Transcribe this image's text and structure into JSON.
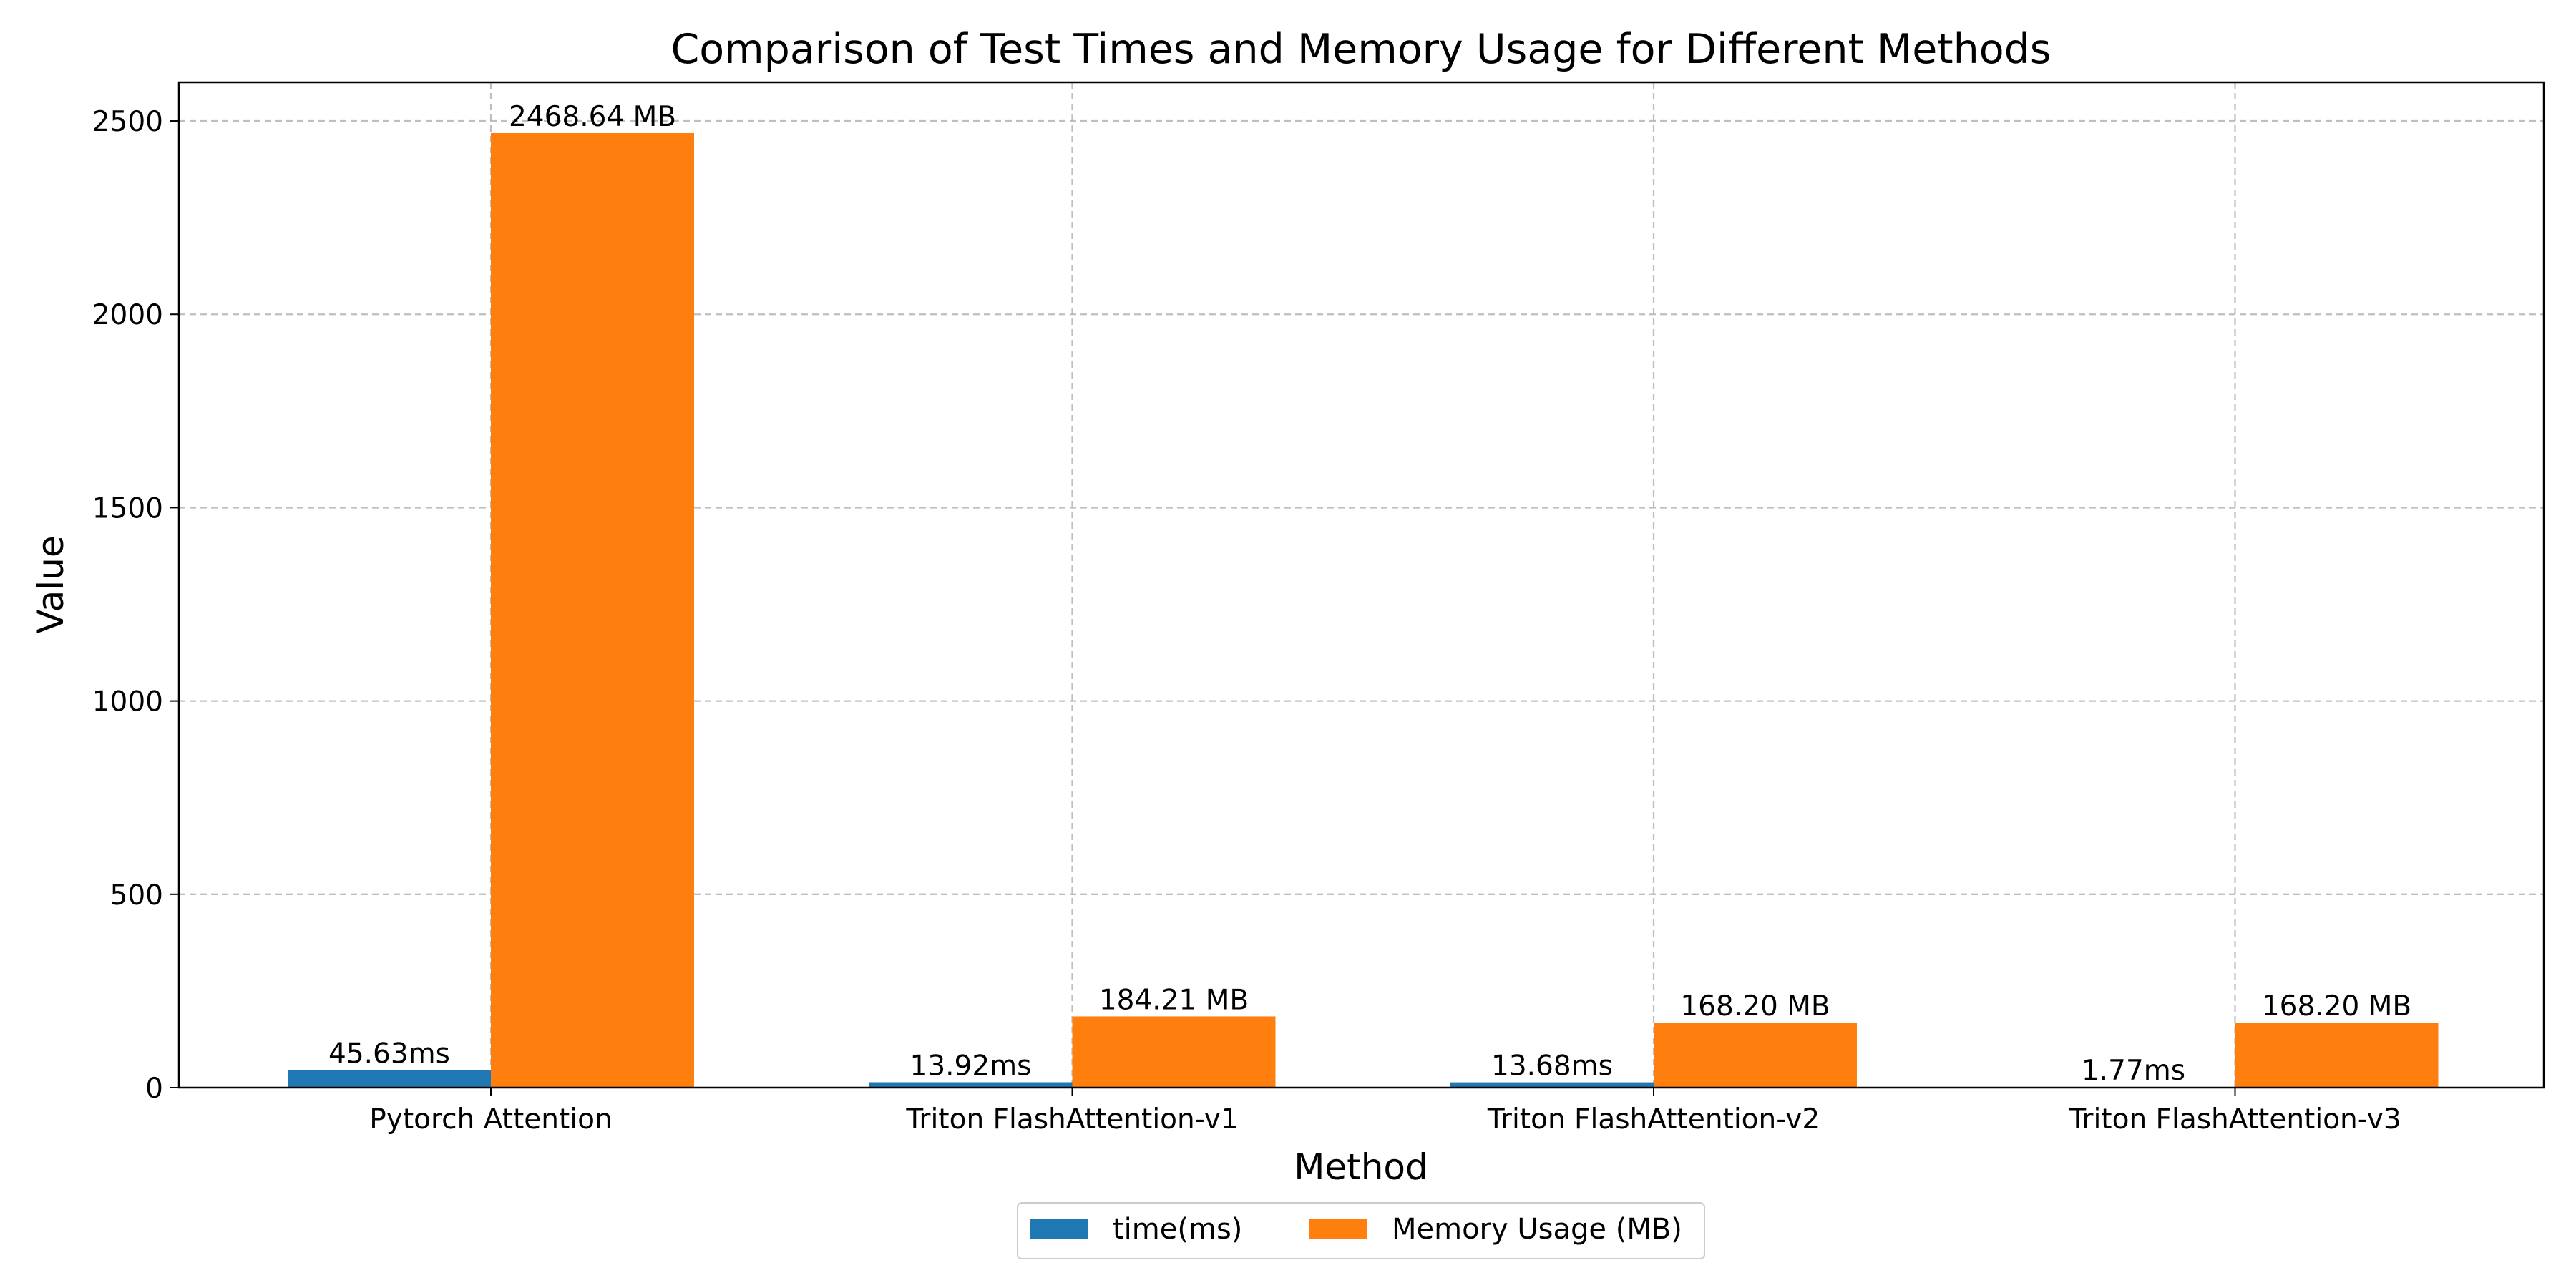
{
  "chart_data": {
    "type": "bar",
    "title": "Comparison of Test Times and Memory Usage for Different Methods",
    "xlabel": "Method",
    "ylabel": "Value",
    "ylim": [
      0,
      2600
    ],
    "yticks": [
      0,
      500,
      1000,
      1500,
      2000,
      2500
    ],
    "grid": true,
    "legend_position": "bottom-center",
    "categories": [
      "Pytorch Attention",
      "Triton FlashAttention-v1",
      "Triton FlashAttention-v2",
      "Triton FlashAttention-v3"
    ],
    "series": [
      {
        "name": "time(ms)",
        "color": "#1f77b4",
        "values": [
          45.63,
          13.92,
          13.68,
          1.77
        ],
        "labels": [
          "45.63ms",
          "13.92ms",
          "13.68ms",
          "1.77ms"
        ]
      },
      {
        "name": "Memory Usage (MB)",
        "color": "#ff7f0e",
        "values": [
          2468.64,
          184.21,
          168.2,
          168.2
        ],
        "labels": [
          "2468.64 MB",
          "184.21 MB",
          "168.20 MB",
          "168.20 MB"
        ]
      }
    ]
  }
}
